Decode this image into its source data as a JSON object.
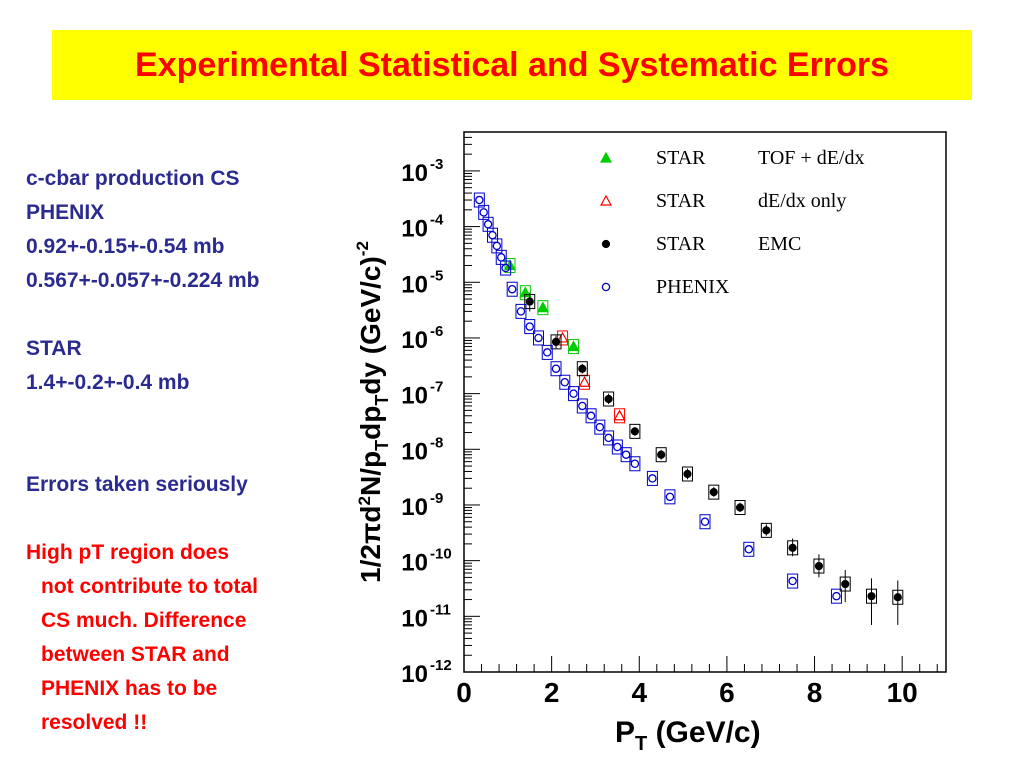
{
  "slide": {
    "title": "Experimental Statistical and Systematic Errors",
    "title_bg": "#ffff00",
    "title_color": "#ff0000",
    "notes": {
      "cs_lines": [
        "c-cbar production CS",
        "PHENIX",
        "0.92+-0.15+-0.54 mb",
        "0.567+-0.057+-0.224 mb"
      ],
      "star_lines": [
        "STAR",
        "1.4+-0.2+-0.4 mb"
      ],
      "errors_line": "Errors taken seriously",
      "highpt_lines": [
        "High pT region does",
        "not contribute to total",
        "CS much. Difference",
        "between STAR and",
        "PHENIX has to be",
        "resolved !!"
      ],
      "blue_color": "#2b2b8f",
      "red_color": "#ff0000"
    }
  },
  "chart_data": {
    "type": "scatter",
    "yscale": "log",
    "xlim": [
      0,
      11
    ],
    "ylim": [
      1e-12,
      0.005
    ],
    "x_ticks": [
      "0",
      "2",
      "4",
      "6",
      "8",
      "10"
    ],
    "y_ticks": [
      {
        "base": "10",
        "exp": "-3"
      },
      {
        "base": "10",
        "exp": "-4"
      },
      {
        "base": "10",
        "exp": "-5"
      },
      {
        "base": "10",
        "exp": "-6"
      },
      {
        "base": "10",
        "exp": "-7"
      },
      {
        "base": "10",
        "exp": "-8"
      },
      {
        "base": "10",
        "exp": "-9"
      },
      {
        "base": "10",
        "exp": "-10"
      },
      {
        "base": "10",
        "exp": "-11"
      },
      {
        "base": "10",
        "exp": "-12"
      }
    ],
    "xlabel": {
      "main": "P",
      "sub": "T",
      "rest": " (GeV/c)"
    },
    "ylabel": {
      "text": "1/2πd²N/p_T dp_T dy (GeV/c)^-2"
    },
    "legend": [
      {
        "exp": "STAR",
        "method": "TOF + dE/dx",
        "marker": "triangle-filled",
        "color": "#00cc00"
      },
      {
        "exp": "STAR",
        "method": "dE/dx only",
        "marker": "triangle-open",
        "color": "#ff0000"
      },
      {
        "exp": "STAR",
        "method": "EMC",
        "marker": "circle-filled",
        "color": "#000000"
      },
      {
        "exp": "PHENIX",
        "method": "",
        "marker": "circle-open",
        "color": "#0000cc"
      }
    ],
    "series": [
      {
        "name": "STAR TOF + dE/dx",
        "marker": "triangle-filled",
        "color": "#00cc00",
        "x": [
          1.05,
          1.4,
          1.8,
          2.5
        ],
        "y": [
          2e-05,
          6.5e-06,
          3.5e-06,
          7e-07
        ]
      },
      {
        "name": "STAR dE/dx only",
        "marker": "triangle-open",
        "color": "#ff0000",
        "x": [
          2.25,
          2.75,
          3.55
        ],
        "y": [
          1e-06,
          1.6e-07,
          4e-08
        ]
      },
      {
        "name": "STAR EMC",
        "marker": "circle-filled",
        "color": "#000000",
        "x": [
          1.5,
          2.1,
          2.7,
          3.3,
          3.9,
          4.5,
          5.1,
          5.7,
          6.3,
          6.9,
          7.5,
          8.1,
          8.7,
          9.3,
          9.9
        ],
        "y": [
          4.5e-06,
          8.5e-07,
          2.8e-07,
          8e-08,
          2.1e-08,
          8e-09,
          3.6e-09,
          1.7e-09,
          9e-10,
          3.5e-10,
          1.7e-10,
          8e-11,
          3.8e-11,
          2.3e-11,
          2.2e-11
        ],
        "yerr_low": [
          1.5e-06,
          2e-07,
          5e-08,
          1.5e-08,
          3.5e-09,
          1.5e-09,
          7e-10,
          3e-10,
          1.5e-10,
          7e-11,
          5e-11,
          3e-11,
          2e-11,
          1.6e-11,
          1.5e-11
        ],
        "yerr_high": [
          2e-06,
          2.5e-07,
          6e-08,
          2e-08,
          4e-09,
          1.8e-09,
          9e-10,
          4e-10,
          2e-10,
          1e-10,
          8e-11,
          5e-11,
          3e-11,
          2.5e-11,
          2.2e-11
        ]
      },
      {
        "name": "PHENIX",
        "marker": "circle-open",
        "color": "#0000cc",
        "x": [
          0.35,
          0.45,
          0.55,
          0.65,
          0.75,
          0.85,
          0.95,
          1.1,
          1.3,
          1.5,
          1.7,
          1.9,
          2.1,
          2.3,
          2.5,
          2.7,
          2.9,
          3.1,
          3.3,
          3.5,
          3.7,
          3.9,
          4.3,
          4.7,
          5.5,
          6.5,
          7.5,
          8.5
        ],
        "y": [
          0.0003,
          0.00018,
          0.00011,
          7e-05,
          4.5e-05,
          2.8e-05,
          1.8e-05,
          7.5e-06,
          3e-06,
          1.6e-06,
          1e-06,
          5.5e-07,
          2.8e-07,
          1.6e-07,
          1e-07,
          6e-08,
          4e-08,
          2.5e-08,
          1.6e-08,
          1.1e-08,
          8e-09,
          5.5e-09,
          3e-09,
          1.4e-09,
          5e-10,
          1.6e-10,
          4.3e-11,
          2.3e-11
        ]
      }
    ]
  }
}
